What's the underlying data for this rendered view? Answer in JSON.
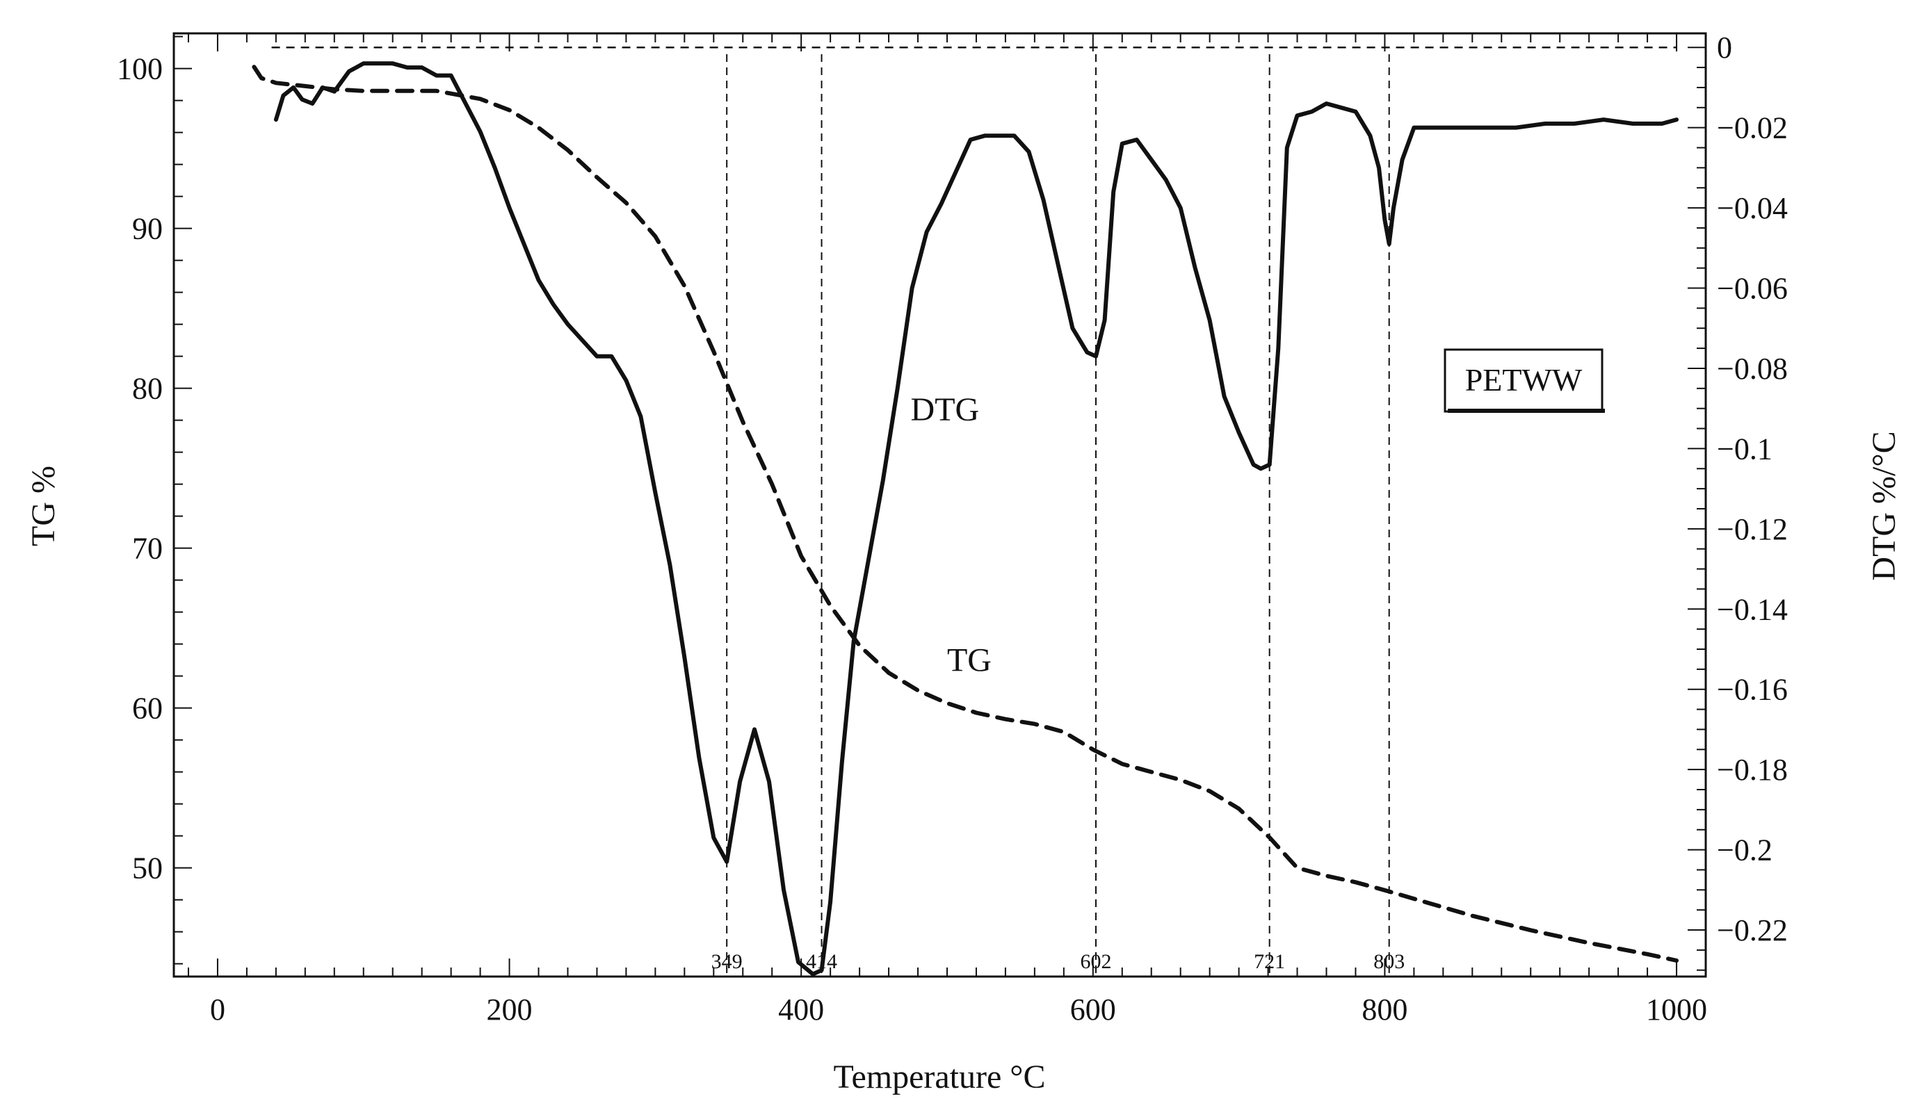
{
  "chart_data": {
    "type": "line",
    "legend_box": "PETWW",
    "xlabel": "Temperature °C",
    "ylabel_left": "TG %",
    "ylabel_right": "DTG %/°C",
    "xlim": [
      -30,
      1020
    ],
    "ylim_left": [
      43.2,
      102.2
    ],
    "ylim_right": [
      -0.2316,
      0.0035
    ],
    "x_ticks": [
      0,
      200,
      400,
      600,
      800,
      1000
    ],
    "x_tick_labels": [
      "0",
      "200",
      "400",
      "600",
      "800",
      "1000"
    ],
    "y_left_ticks": [
      50,
      60,
      70,
      80,
      90,
      100
    ],
    "y_left_tick_labels": [
      "50",
      "60",
      "70",
      "80",
      "90",
      "100"
    ],
    "y_right_ticks": [
      0,
      -0.02,
      -0.04,
      -0.06,
      -0.08,
      -0.1,
      -0.12,
      -0.14,
      -0.16,
      -0.18,
      -0.2,
      -0.22
    ],
    "y_right_tick_labels": [
      "0",
      "−0.02",
      "−0.04",
      "−0.06",
      "−0.08",
      "−0.1",
      "−0.12",
      "−0.14",
      "−0.16",
      "−0.18",
      "−0.2",
      "−0.22"
    ],
    "peak_markers": [
      {
        "x": 349,
        "label": "349"
      },
      {
        "x": 414,
        "label": "414"
      },
      {
        "x": 602,
        "label": "602"
      },
      {
        "x": 721,
        "label": "721"
      },
      {
        "x": 803,
        "label": "803"
      }
    ],
    "zero_line": {
      "y": 0,
      "x_start": 37,
      "x_end": 1000
    },
    "series": [
      {
        "name": "TG",
        "axis": "left",
        "style": "dashed",
        "label_position": {
          "x": 500,
          "y": 62.3
        },
        "x": [
          25,
          30,
          40,
          60,
          80,
          100,
          120,
          150,
          180,
          200,
          220,
          240,
          260,
          280,
          300,
          320,
          340,
          360,
          380,
          400,
          420,
          440,
          460,
          480,
          500,
          520,
          540,
          560,
          580,
          600,
          620,
          640,
          660,
          680,
          700,
          721,
          740,
          760,
          780,
          800,
          830,
          860,
          900,
          940,
          980,
          1000
        ],
        "y": [
          100.1,
          99.4,
          99.1,
          98.9,
          98.7,
          98.6,
          98.6,
          98.6,
          98.1,
          97.4,
          96.3,
          94.9,
          93.2,
          91.6,
          89.5,
          86.4,
          82.3,
          77.9,
          74.0,
          69.5,
          66.4,
          63.9,
          62.2,
          61.1,
          60.3,
          59.7,
          59.3,
          59.0,
          58.5,
          57.4,
          56.5,
          56.0,
          55.5,
          54.8,
          53.7,
          51.9,
          50.0,
          49.5,
          49.1,
          48.6,
          47.8,
          47.0,
          46.1,
          45.3,
          44.6,
          44.2
        ]
      },
      {
        "name": "DTG",
        "axis": "right",
        "style": "solid",
        "label_position": {
          "x": 475,
          "y": -0.093
        },
        "x": [
          40,
          45,
          52,
          58,
          65,
          72,
          80,
          90,
          100,
          110,
          120,
          130,
          140,
          150,
          160,
          170,
          180,
          190,
          200,
          210,
          220,
          230,
          240,
          250,
          260,
          270,
          280,
          290,
          300,
          310,
          320,
          330,
          340,
          349,
          358,
          368,
          378,
          388,
          398,
          408,
          414,
          420,
          428,
          436,
          446,
          456,
          466,
          476,
          486,
          496,
          506,
          516,
          526,
          536,
          546,
          556,
          566,
          576,
          586,
          596,
          602,
          608,
          614,
          620,
          630,
          640,
          650,
          660,
          670,
          680,
          690,
          700,
          710,
          715,
          721,
          727,
          733,
          740,
          750,
          760,
          770,
          780,
          790,
          796,
          800,
          803,
          806,
          812,
          820,
          830,
          850,
          870,
          890,
          910,
          930,
          950,
          970,
          990,
          1000
        ],
        "y": [
          -0.018,
          -0.012,
          -0.01,
          -0.013,
          -0.014,
          -0.01,
          -0.011,
          -0.006,
          -0.004,
          -0.004,
          -0.004,
          -0.005,
          -0.005,
          -0.007,
          -0.007,
          -0.014,
          -0.021,
          -0.03,
          -0.04,
          -0.049,
          -0.058,
          -0.064,
          -0.069,
          -0.073,
          -0.077,
          -0.077,
          -0.083,
          -0.092,
          -0.111,
          -0.129,
          -0.152,
          -0.177,
          -0.197,
          -0.203,
          -0.183,
          -0.17,
          -0.183,
          -0.21,
          -0.228,
          -0.231,
          -0.23,
          -0.213,
          -0.178,
          -0.148,
          -0.128,
          -0.108,
          -0.085,
          -0.06,
          -0.046,
          -0.039,
          -0.031,
          -0.023,
          -0.022,
          -0.022,
          -0.022,
          -0.026,
          -0.038,
          -0.054,
          -0.07,
          -0.076,
          -0.077,
          -0.068,
          -0.036,
          -0.024,
          -0.023,
          -0.028,
          -0.033,
          -0.04,
          -0.055,
          -0.068,
          -0.087,
          -0.096,
          -0.104,
          -0.105,
          -0.104,
          -0.075,
          -0.025,
          -0.017,
          -0.016,
          -0.014,
          -0.015,
          -0.016,
          -0.022,
          -0.03,
          -0.043,
          -0.049,
          -0.04,
          -0.028,
          -0.02,
          -0.02,
          -0.02,
          -0.02,
          -0.02,
          -0.019,
          -0.019,
          -0.018,
          -0.019,
          -0.019,
          -0.018
        ]
      }
    ]
  }
}
